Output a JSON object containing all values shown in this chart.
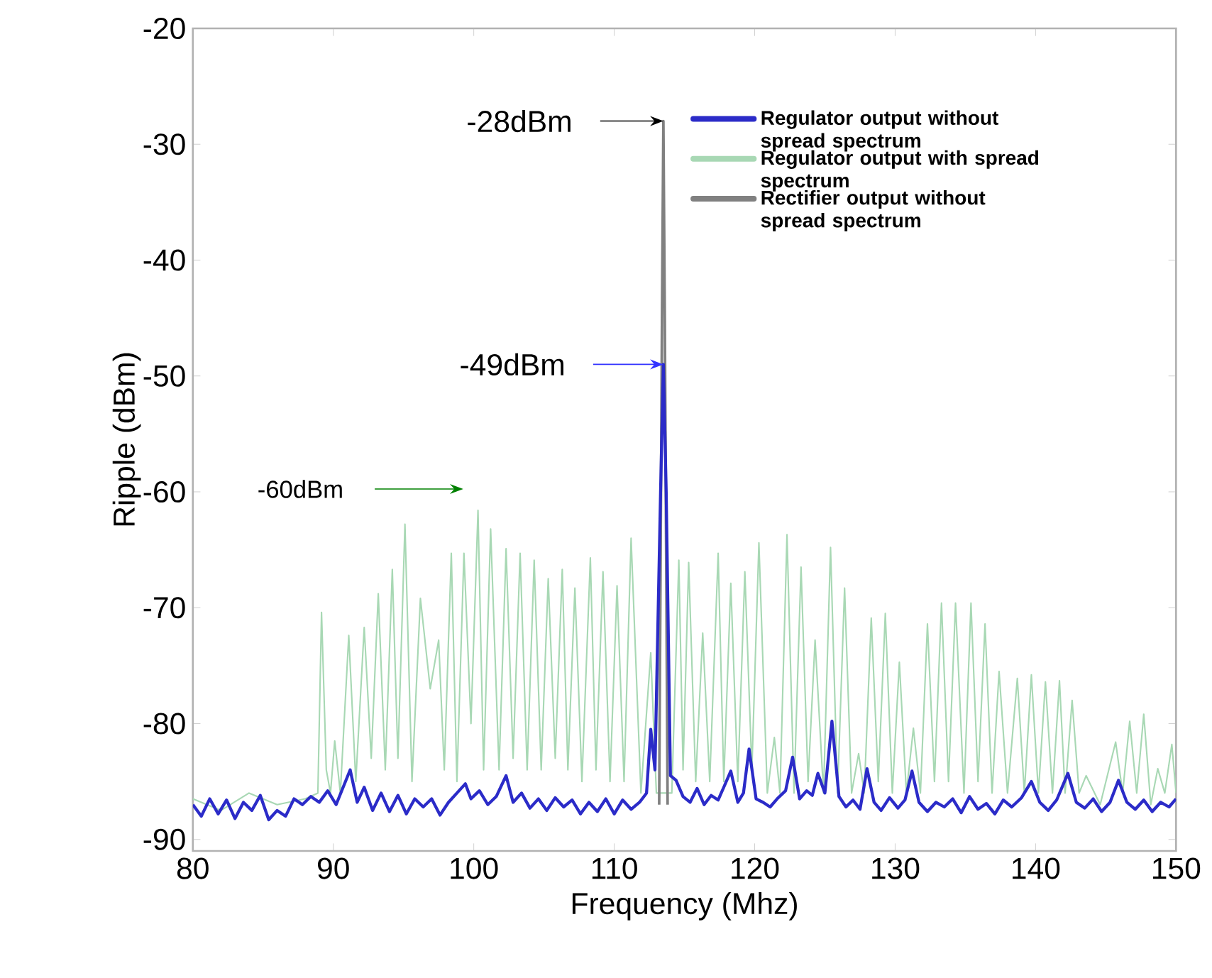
{
  "chart_data": {
    "type": "line",
    "xlabel": "Frequency (Mhz)",
    "ylabel": "Ripple (dBm)",
    "xlim": [
      80,
      150
    ],
    "ylim": [
      -91,
      -20
    ],
    "xticks": [
      80,
      90,
      100,
      110,
      120,
      130,
      140,
      150
    ],
    "yticks": [
      -20,
      -30,
      -40,
      -50,
      -60,
      -70,
      -80,
      -90
    ],
    "grid": false,
    "legend": "top right",
    "marker": "none",
    "line_style": "solid",
    "annotations": [
      {
        "text": "-28dBm",
        "x": 113.5,
        "y": -28
      },
      {
        "text": "-49dBm",
        "x": 113.5,
        "y": -49
      },
      "-60dBm"
    ],
    "series": [
      {
        "name": "Regulator output without spread spectrum",
        "color": "#2b2bc8",
        "x": [
          80,
          80.6,
          81.2,
          81.8,
          82.4,
          83,
          83.6,
          84.2,
          84.8,
          85.4,
          86,
          86.6,
          87.2,
          87.8,
          88.4,
          89,
          89.6,
          90.2,
          90.7,
          91.2,
          91.7,
          92.2,
          92.8,
          93.4,
          94,
          94.6,
          95.2,
          95.8,
          96.4,
          97,
          97.6,
          98.2,
          98.8,
          99.4,
          99.8,
          100.4,
          101,
          101.6,
          102.3,
          102.8,
          103.4,
          104,
          104.6,
          105.2,
          105.8,
          106.4,
          107,
          107.6,
          108.2,
          108.8,
          109.4,
          110,
          110.6,
          111.2,
          111.8,
          112.3,
          112.6,
          112.9,
          113.3,
          113.5,
          113.7,
          114.0,
          114.4,
          114.9,
          115.4,
          115.9,
          116.4,
          116.9,
          117.4,
          117.8,
          118.3,
          118.8,
          119.2,
          119.6,
          120.1,
          120.6,
          121.1,
          121.6,
          122.2,
          122.7,
          123.2,
          123.7,
          124.1,
          124.5,
          125,
          125.5,
          126,
          126.5,
          127,
          127.5,
          128,
          128.5,
          129,
          129.6,
          130.2,
          130.7,
          131.2,
          131.7,
          132.3,
          132.9,
          133.5,
          134.1,
          134.7,
          135.3,
          135.9,
          136.5,
          137.1,
          137.7,
          138.3,
          139,
          139.7,
          140.3,
          140.9,
          141.5,
          142.3,
          142.9,
          143.5,
          144.1,
          144.7,
          145.3,
          145.9,
          146.5,
          147.1,
          147.7,
          148.3,
          148.9,
          149.5,
          150
        ],
        "values": [
          -87,
          -88,
          -86.5,
          -87.8,
          -86.6,
          -88.2,
          -86.8,
          -87.5,
          -86.2,
          -88.3,
          -87.5,
          -88,
          -86.5,
          -87,
          -86.3,
          -86.8,
          -85.8,
          -87,
          -85.5,
          -84,
          -86.8,
          -85.5,
          -87.5,
          -86,
          -87.6,
          -86.2,
          -87.8,
          -86.5,
          -87.2,
          -86.5,
          -87.9,
          -86.8,
          -86,
          -85.2,
          -86.5,
          -85.8,
          -87,
          -86.3,
          -84.5,
          -86.8,
          -86,
          -87.3,
          -86.5,
          -87.5,
          -86.4,
          -87.2,
          -86.6,
          -87.8,
          -86.8,
          -87.6,
          -86.5,
          -87.8,
          -86.6,
          -87.4,
          -86.8,
          -86,
          -80.5,
          -84,
          -60,
          -49,
          -60,
          -84.5,
          -84.9,
          -86.3,
          -86.8,
          -85.6,
          -87,
          -86.2,
          -86.6,
          -85.5,
          -84.1,
          -86.8,
          -86,
          -82.2,
          -86.5,
          -86.8,
          -87.2,
          -86.5,
          -85.8,
          -82.9,
          -86.5,
          -85.8,
          -86.2,
          -84.3,
          -86,
          -79.8,
          -86.3,
          -87.2,
          -86.6,
          -87.4,
          -83.9,
          -86.8,
          -87.5,
          -86.4,
          -87.3,
          -86.6,
          -84.1,
          -86.8,
          -87.6,
          -86.8,
          -87.2,
          -86.5,
          -87.7,
          -86.3,
          -87.4,
          -86.9,
          -87.8,
          -86.6,
          -87.2,
          -86.4,
          -85,
          -86.8,
          -87.5,
          -86.6,
          -84.3,
          -86.8,
          -87.3,
          -86.5,
          -87.6,
          -86.8,
          -84.9,
          -86.8,
          -87.4,
          -86.6,
          -87.6,
          -86.8,
          -87.2,
          -86.5
        ]
      },
      {
        "name": "Regulator output with spread spectrum",
        "color": "#a8d8b4",
        "x": [
          80,
          82,
          84,
          86,
          88,
          88.9,
          89.16,
          89.5,
          89.8,
          90.1,
          90.5,
          91.1,
          91.6,
          92.2,
          92.7,
          93.2,
          93.7,
          94.2,
          94.6,
          95.1,
          95.6,
          96.2,
          96.9,
          97.5,
          97.9,
          98.4,
          98.8,
          99.3,
          99.8,
          100.3,
          100.7,
          101.2,
          101.8,
          102.3,
          102.8,
          103.3,
          103.8,
          104.3,
          104.8,
          105.3,
          105.8,
          106.3,
          106.7,
          107.2,
          107.7,
          108.3,
          108.7,
          109.2,
          109.7,
          110.2,
          110.7,
          111.2,
          111.9,
          112.6,
          113.0,
          114.1,
          114.6,
          114.9,
          115.3,
          115.8,
          116.3,
          116.8,
          117.4,
          117.8,
          118.3,
          118.8,
          119.3,
          119.8,
          120.3,
          120.9,
          121.4,
          121.8,
          122.3,
          122.8,
          123.3,
          123.8,
          124.3,
          124.9,
          125.4,
          125.9,
          126.4,
          126.9,
          127.4,
          127.8,
          128.3,
          128.8,
          129.3,
          129.8,
          130.3,
          130.8,
          131.3,
          131.8,
          132.3,
          132.8,
          133.3,
          133.8,
          134.3,
          134.9,
          135.4,
          135.9,
          136.4,
          136.9,
          137.4,
          138.0,
          138.7,
          139.2,
          139.7,
          140.2,
          140.7,
          141.2,
          141.7,
          142.1,
          142.6,
          143.1,
          143.6,
          144.6,
          145.7,
          146.2,
          146.7,
          147.2,
          147.7,
          148.2,
          148.7,
          149.2,
          149.7,
          150
        ],
        "values": [
          -86.5,
          -87.5,
          -86,
          -87,
          -86.5,
          -86,
          -70.4,
          -84,
          -86,
          -81.5,
          -86,
          -72.4,
          -85,
          -71.7,
          -83,
          -68.8,
          -84,
          -66.7,
          -83,
          -62.8,
          -85,
          -69.2,
          -77,
          -72.8,
          -84,
          -65.3,
          -85,
          -65.3,
          -80,
          -61.6,
          -84,
          -63.2,
          -84,
          -64.9,
          -83,
          -65.3,
          -84,
          -65.9,
          -84,
          -67.5,
          -83,
          -66.7,
          -84,
          -68.3,
          -85,
          -65.7,
          -84,
          -66.9,
          -85,
          -68.1,
          -85,
          -64,
          -86,
          -73.9,
          -86,
          -86,
          -65.9,
          -84,
          -66.1,
          -85,
          -72.2,
          -85,
          -65.3,
          -85,
          -67.9,
          -85,
          -66.9,
          -84,
          -64.4,
          -86,
          -81.2,
          -86,
          -63.7,
          -86,
          -66.5,
          -85,
          -72.8,
          -86,
          -64.8,
          -86,
          -68.3,
          -86,
          -82.6,
          -86,
          -70.9,
          -85,
          -70.5,
          -86,
          -74.7,
          -86,
          -80.4,
          -86,
          -71.4,
          -85,
          -69.6,
          -85,
          -69.6,
          -86,
          -69.6,
          -85,
          -71.4,
          -86,
          -75.5,
          -86,
          -76.1,
          -86,
          -75.8,
          -86,
          -76.4,
          -86,
          -76.3,
          -86,
          -78,
          -86,
          -84.5,
          -87,
          -81.6,
          -86,
          -79.8,
          -86,
          -79.2,
          -87,
          -83.9,
          -86,
          -81.8,
          -86
        ]
      },
      {
        "name": "Rectifier output without spread spectrum",
        "color": "#808080",
        "x": [
          113.2,
          113.4,
          113.5,
          113.6,
          113.8
        ],
        "values": [
          -87,
          -45,
          -28,
          -45,
          -87
        ]
      }
    ]
  }
}
